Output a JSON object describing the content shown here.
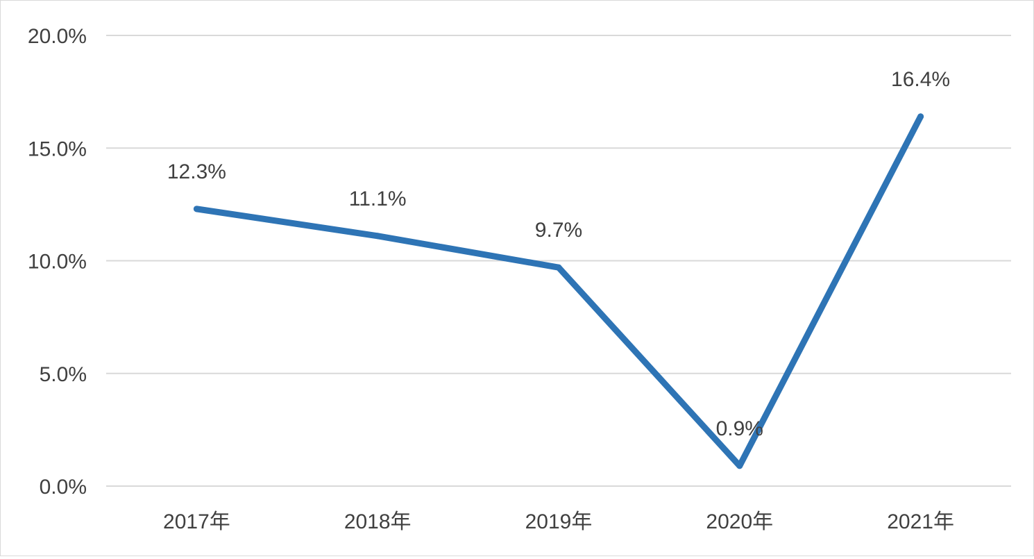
{
  "chart_data": {
    "type": "line",
    "title": "",
    "xlabel": "",
    "ylabel": "",
    "categories": [
      "2017年",
      "2018年",
      "2019年",
      "2020年",
      "2021年"
    ],
    "values": [
      12.3,
      11.1,
      9.7,
      0.9,
      16.4
    ],
    "data_labels": [
      "12.3%",
      "11.1%",
      "9.7%",
      "0.9%",
      "16.4%"
    ],
    "y_ticks": [
      0,
      5,
      10,
      15,
      20
    ],
    "y_tick_labels": [
      "0.0%",
      "5.0%",
      "10.0%",
      "15.0%",
      "20.0%"
    ],
    "ylim": [
      0,
      20
    ],
    "grid": true,
    "legend": "none",
    "colors": {
      "line": "#2e74b5",
      "grid": "#d9d9d9",
      "text": "#404040"
    }
  }
}
